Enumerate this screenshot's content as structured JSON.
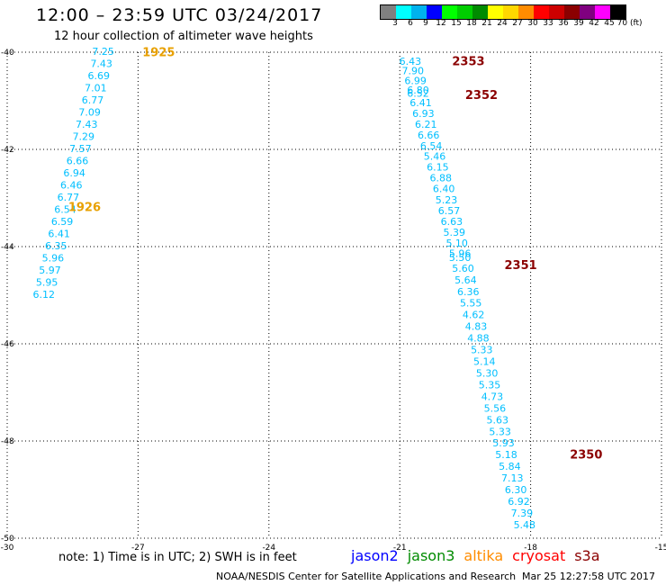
{
  "header": {
    "title": "12:00 – 23:59 UTC 03/24/2017",
    "subtitle": "12 hour collection of altimeter wave heights"
  },
  "color_legend": {
    "unit": "(ft)",
    "swatches": [
      {
        "label": "3",
        "color": "#808080"
      },
      {
        "label": "6",
        "color": "#00ffff"
      },
      {
        "label": "9",
        "color": "#00b2ee"
      },
      {
        "label": "12",
        "color": "#0000ff"
      },
      {
        "label": "15",
        "color": "#00ff00"
      },
      {
        "label": "18",
        "color": "#00cd00"
      },
      {
        "label": "21",
        "color": "#008b00"
      },
      {
        "label": "24",
        "color": "#ffff00"
      },
      {
        "label": "27",
        "color": "#ffd700"
      },
      {
        "label": "30",
        "color": "#ff8c00"
      },
      {
        "label": "33",
        "color": "#ff0000"
      },
      {
        "label": "36",
        "color": "#cd0000"
      },
      {
        "label": "39",
        "color": "#8b0000"
      },
      {
        "label": "42",
        "color": "#800080"
      },
      {
        "label": "45",
        "color": "#ff00ff"
      },
      {
        "label": "70",
        "color": "#000000"
      }
    ]
  },
  "map": {
    "lon_range": [
      -30,
      -15
    ],
    "lat_range": [
      -50,
      -40
    ],
    "lon_ticks": [
      "-30",
      "-27",
      "-24",
      "-21",
      "-18",
      "-15"
    ],
    "lat_ticks": [
      "-40",
      "-42",
      "-44",
      "-46",
      "-48",
      "-50"
    ],
    "grid": "dotted",
    "tracks": [
      {
        "satellite": "altika",
        "color": "#00bfff",
        "time_labels": [
          {
            "text": "1925",
            "lon": -26.9,
            "lat": -40.02,
            "color": "#e8a000"
          },
          {
            "text": "1926",
            "lon": -28.6,
            "lat": -43.2,
            "color": "#e8a000"
          }
        ],
        "points": [
          {
            "v": "7.25",
            "lon": -27.8,
            "lat": -40.0
          },
          {
            "v": "7.43",
            "lon": -27.84,
            "lat": -40.25
          },
          {
            "v": "6.69",
            "lon": -27.9,
            "lat": -40.5
          },
          {
            "v": "7.01",
            "lon": -27.97,
            "lat": -40.75
          },
          {
            "v": "6.77",
            "lon": -28.04,
            "lat": -41.0
          },
          {
            "v": "7.09",
            "lon": -28.11,
            "lat": -41.25
          },
          {
            "v": "7.43",
            "lon": -28.18,
            "lat": -41.5
          },
          {
            "v": "7.29",
            "lon": -28.25,
            "lat": -41.75
          },
          {
            "v": "7.57",
            "lon": -28.32,
            "lat": -42.0
          },
          {
            "v": "6.66",
            "lon": -28.39,
            "lat": -42.25
          },
          {
            "v": "6.94",
            "lon": -28.46,
            "lat": -42.5
          },
          {
            "v": "6.46",
            "lon": -28.53,
            "lat": -42.75
          },
          {
            "v": "6.77",
            "lon": -28.6,
            "lat": -43.0
          },
          {
            "v": "6.54",
            "lon": -28.67,
            "lat": -43.25
          },
          {
            "v": "6.59",
            "lon": -28.74,
            "lat": -43.5
          },
          {
            "v": "6.41",
            "lon": -28.81,
            "lat": -43.75
          },
          {
            "v": "6.35",
            "lon": -28.88,
            "lat": -44.0
          },
          {
            "v": "5.96",
            "lon": -28.95,
            "lat": -44.25
          },
          {
            "v": "5.97",
            "lon": -29.02,
            "lat": -44.5
          },
          {
            "v": "5.95",
            "lon": -29.09,
            "lat": -44.75
          },
          {
            "v": "6.12",
            "lon": -29.16,
            "lat": -45.0
          }
        ]
      },
      {
        "satellite": "cryosat",
        "color": "#00bfff",
        "time_labels": [
          {
            "text": "2353",
            "lon": -19.8,
            "lat": -40.2,
            "color": "#8b0000"
          },
          {
            "text": "2352",
            "lon": -19.5,
            "lat": -40.9,
            "color": "#8b0000"
          },
          {
            "text": "2351",
            "lon": -18.6,
            "lat": -44.4,
            "color": "#8b0000"
          },
          {
            "text": "2350",
            "lon": -17.1,
            "lat": -48.3,
            "color": "#8b0000"
          }
        ],
        "points": [
          {
            "v": "6.43",
            "lon": -20.76,
            "lat": -40.2
          },
          {
            "v": "7.90",
            "lon": -20.7,
            "lat": -40.4
          },
          {
            "v": "6.99",
            "lon": -20.64,
            "lat": -40.6
          },
          {
            "v": "6.80",
            "lon": -20.58,
            "lat": -40.8
          },
          {
            "v": "6.52",
            "lon": -20.58,
            "lat": -40.86
          },
          {
            "v": "6.41",
            "lon": -20.52,
            "lat": -41.06
          },
          {
            "v": "6.93",
            "lon": -20.46,
            "lat": -41.28
          },
          {
            "v": "6.21",
            "lon": -20.4,
            "lat": -41.5
          },
          {
            "v": "6.66",
            "lon": -20.34,
            "lat": -41.72
          },
          {
            "v": "6.54",
            "lon": -20.28,
            "lat": -41.94
          },
          {
            "v": "5.46",
            "lon": -20.2,
            "lat": -42.16
          },
          {
            "v": "6.15",
            "lon": -20.13,
            "lat": -42.38
          },
          {
            "v": "6.88",
            "lon": -20.06,
            "lat": -42.6
          },
          {
            "v": "6.40",
            "lon": -19.99,
            "lat": -42.82
          },
          {
            "v": "5.23",
            "lon": -19.93,
            "lat": -43.06
          },
          {
            "v": "6.57",
            "lon": -19.87,
            "lat": -43.28
          },
          {
            "v": "6.63",
            "lon": -19.81,
            "lat": -43.5
          },
          {
            "v": "5.39",
            "lon": -19.75,
            "lat": -43.72
          },
          {
            "v": "5.10",
            "lon": -19.69,
            "lat": -43.94
          },
          {
            "v": "5.96",
            "lon": -19.62,
            "lat": -44.16
          },
          {
            "v": "5.50",
            "lon": -19.62,
            "lat": -44.24
          },
          {
            "v": "5.60",
            "lon": -19.55,
            "lat": -44.46
          },
          {
            "v": "5.64",
            "lon": -19.49,
            "lat": -44.7
          },
          {
            "v": "6.36",
            "lon": -19.43,
            "lat": -44.94
          },
          {
            "v": "5.55",
            "lon": -19.37,
            "lat": -45.18
          },
          {
            "v": "4.62",
            "lon": -19.31,
            "lat": -45.42
          },
          {
            "v": "4.83",
            "lon": -19.25,
            "lat": -45.66
          },
          {
            "v": "4.88",
            "lon": -19.2,
            "lat": -45.9
          },
          {
            "v": "5.33",
            "lon": -19.12,
            "lat": -46.14
          },
          {
            "v": "5.14",
            "lon": -19.06,
            "lat": -46.38
          },
          {
            "v": "5.30",
            "lon": -19.0,
            "lat": -46.62
          },
          {
            "v": "5.35",
            "lon": -18.94,
            "lat": -46.86
          },
          {
            "v": "4.73",
            "lon": -18.88,
            "lat": -47.1
          },
          {
            "v": "5.56",
            "lon": -18.82,
            "lat": -47.34
          },
          {
            "v": "5.63",
            "lon": -18.76,
            "lat": -47.58
          },
          {
            "v": "5.33",
            "lon": -18.7,
            "lat": -47.82
          },
          {
            "v": "5.93",
            "lon": -18.62,
            "lat": -48.06
          },
          {
            "v": "5.18",
            "lon": -18.56,
            "lat": -48.3
          },
          {
            "v": "5.84",
            "lon": -18.48,
            "lat": -48.54
          },
          {
            "v": "7.13",
            "lon": -18.42,
            "lat": -48.78
          },
          {
            "v": "6.30",
            "lon": -18.34,
            "lat": -49.02
          },
          {
            "v": "6.92",
            "lon": -18.27,
            "lat": -49.26
          },
          {
            "v": "7.39",
            "lon": -18.2,
            "lat": -49.5
          },
          {
            "v": "5.48",
            "lon": -18.14,
            "lat": -49.74
          }
        ]
      }
    ]
  },
  "note": "note:  1) Time is in UTC;  2) SWH is in feet",
  "satellites": [
    {
      "name": "jason2",
      "color": "#0000ff"
    },
    {
      "name": "jason3",
      "color": "#008b00"
    },
    {
      "name": "altika",
      "color": "#ff8c00"
    },
    {
      "name": "cryosat",
      "color": "#ff0000"
    },
    {
      "name": "s3a",
      "color": "#8b0000"
    }
  ],
  "footer": {
    "credit": "NOAA/NESDIS Center for Satellite Applications and Research",
    "timestamp": "Mar 25 12:27:58 UTC 2017"
  }
}
